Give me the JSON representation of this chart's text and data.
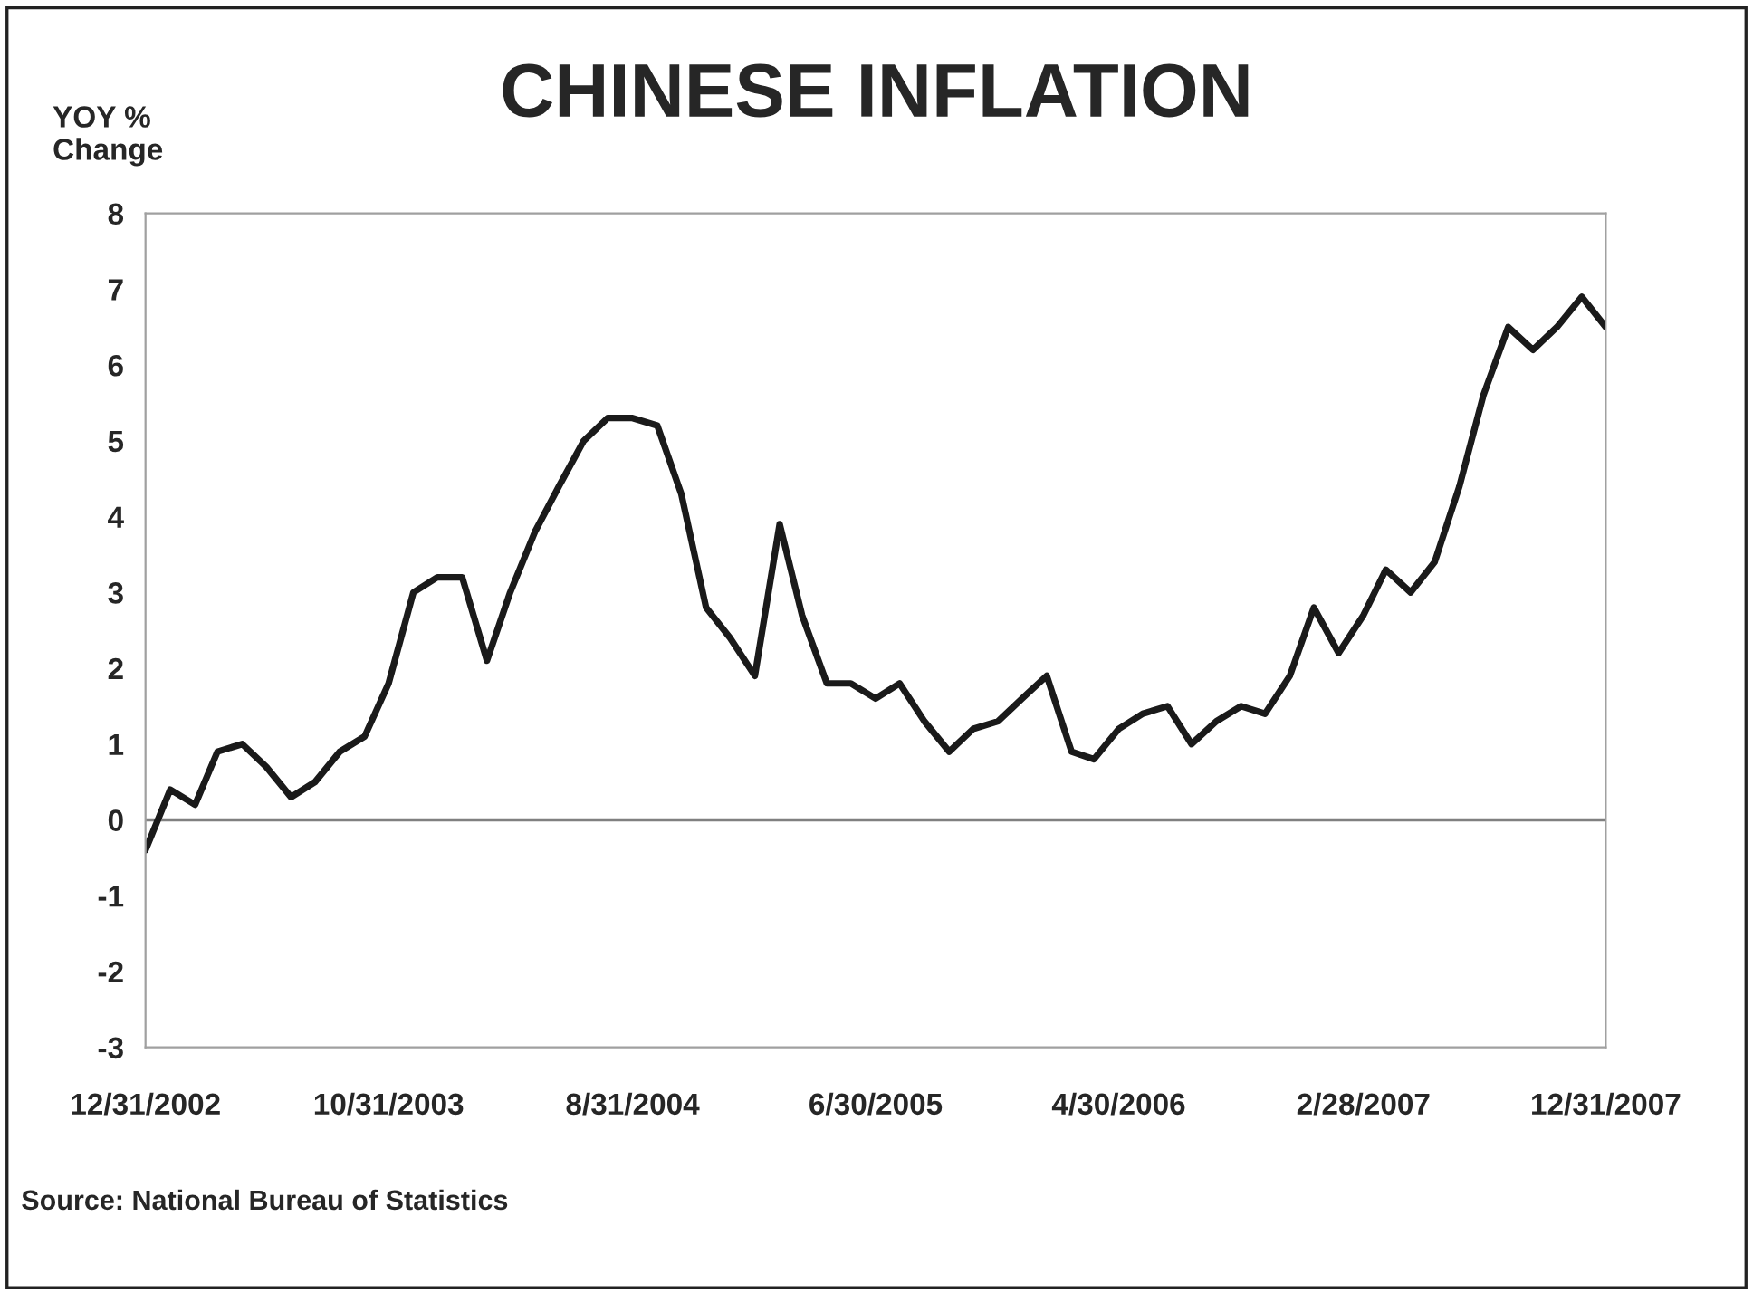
{
  "chart_data": {
    "type": "line",
    "title": "CHINESE INFLATION",
    "ylabel": "YOY %\nChange",
    "x": [
      "2002-12",
      "2003-01",
      "2003-02",
      "2003-03",
      "2003-04",
      "2003-05",
      "2003-06",
      "2003-07",
      "2003-08",
      "2003-09",
      "2003-10",
      "2003-11",
      "2003-12",
      "2004-01",
      "2004-02",
      "2004-03",
      "2004-04",
      "2004-05",
      "2004-06",
      "2004-07",
      "2004-08",
      "2004-09",
      "2004-10",
      "2004-11",
      "2004-12",
      "2005-01",
      "2005-02",
      "2005-03",
      "2005-04",
      "2005-05",
      "2005-06",
      "2005-07",
      "2005-08",
      "2005-09",
      "2005-10",
      "2005-11",
      "2005-12",
      "2006-01",
      "2006-02",
      "2006-03",
      "2006-04",
      "2006-05",
      "2006-06",
      "2006-07",
      "2006-08",
      "2006-09",
      "2006-10",
      "2006-11",
      "2006-12",
      "2007-01",
      "2007-02",
      "2007-03",
      "2007-04",
      "2007-05",
      "2007-06",
      "2007-07",
      "2007-08",
      "2007-09",
      "2007-10",
      "2007-11",
      "2007-12"
    ],
    "series": [
      {
        "color": "#1a1a1a",
        "values": [
          -0.4,
          0.4,
          0.2,
          0.9,
          1.0,
          0.7,
          0.3,
          0.5,
          0.9,
          1.1,
          1.8,
          3.0,
          3.2,
          3.2,
          2.1,
          3.0,
          3.8,
          4.4,
          5.0,
          5.3,
          5.3,
          5.2,
          4.3,
          2.8,
          2.4,
          1.9,
          3.9,
          2.7,
          1.8,
          1.8,
          1.6,
          1.8,
          1.3,
          0.9,
          1.2,
          1.3,
          1.6,
          1.9,
          0.9,
          0.8,
          1.2,
          1.4,
          1.5,
          1.0,
          1.3,
          1.5,
          1.4,
          1.9,
          2.8,
          2.2,
          2.7,
          3.3,
          3.0,
          3.4,
          4.4,
          5.6,
          6.5,
          6.2,
          6.5,
          6.9,
          6.5
        ]
      }
    ],
    "xlim": [
      "2002-12",
      "2007-12"
    ],
    "xticks": [
      {
        "value": "2002-12",
        "label": "12/31/2002"
      },
      {
        "value": "2003-10",
        "label": "10/31/2003"
      },
      {
        "value": "2004-08",
        "label": "8/31/2004"
      },
      {
        "value": "2005-06",
        "label": "6/30/2005"
      },
      {
        "value": "2006-04",
        "label": "4/30/2006"
      },
      {
        "value": "2007-02",
        "label": "2/28/2007"
      },
      {
        "value": "2007-12",
        "label": "12/31/2007"
      }
    ],
    "ylim": [
      -3,
      8
    ],
    "yticks": [
      -3,
      -2,
      -1,
      0,
      1,
      2,
      3,
      4,
      5,
      6,
      7,
      8
    ],
    "ref_lines": [
      {
        "axis": "y",
        "value": 0,
        "color": "#808080"
      }
    ],
    "grid": false,
    "legend": false,
    "line_style": "solid",
    "marker": "none",
    "annotations": [
      "Source: National Bureau of Statistics"
    ]
  }
}
